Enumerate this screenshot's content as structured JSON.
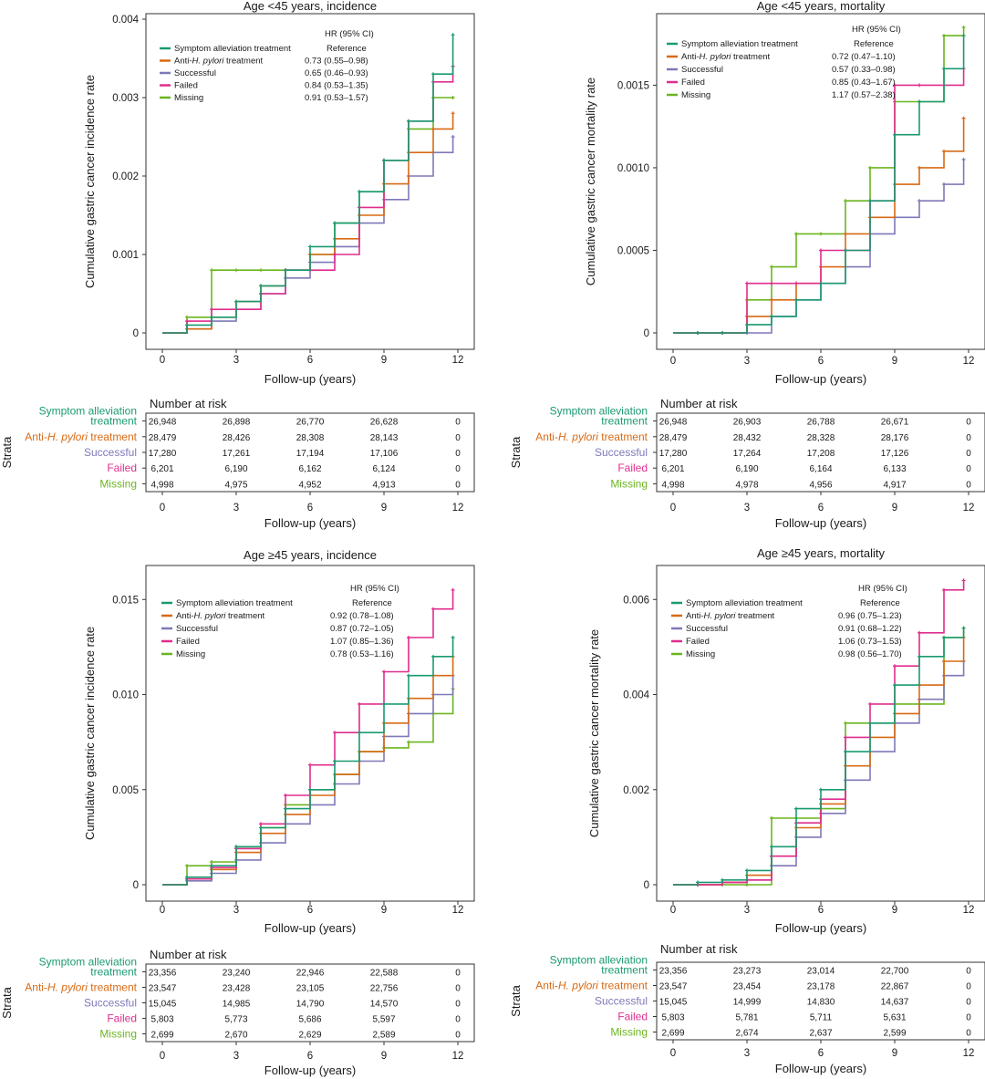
{
  "colors": {
    "Symptom alleviation treatment": "#1a9a72",
    "Anti-H. pylori treatment": "#d86a14",
    "Successful": "#7e79b8",
    "Failed": "#e02d8e",
    "Missing": "#6bb51f",
    "text": "#1a1a1a"
  },
  "chart_data": [
    {
      "type": "line",
      "subtype": "kaplan-meier-cumulative",
      "title": "Age <45 years, incidence",
      "xlabel": "Follow-up (years)",
      "ylabel": "Cumulative gastric cancer incidence rate",
      "xlim": [
        0,
        12
      ],
      "ylim": [
        0,
        0.004
      ],
      "xticks": [
        "0",
        "3",
        "6",
        "9",
        "12"
      ],
      "yticks": [
        "0",
        "0.001",
        "0.002",
        "0.003",
        "0.004"
      ],
      "yticks_values": [
        0,
        0.001,
        0.002,
        0.003,
        0.004
      ],
      "legend": {
        "hr_header": "HR (95% CI)",
        "location": "top-left"
      },
      "series": [
        {
          "name": "Symptom alleviation treatment",
          "hr": "Reference",
          "x": [
            0,
            1,
            2,
            3,
            4,
            5,
            6,
            7,
            8,
            9,
            10,
            11,
            11.8
          ],
          "y": [
            0,
            0.0001,
            0.0002,
            0.0004,
            0.0006,
            0.0008,
            0.0011,
            0.0014,
            0.0018,
            0.0022,
            0.0027,
            0.0033,
            0.0038
          ]
        },
        {
          "name": "Anti-H. pylori treatment",
          "hr": "0.73 (0.55–0.98)",
          "x": [
            0,
            1,
            2,
            3,
            4,
            5,
            6,
            7,
            8,
            9,
            10,
            11,
            11.8
          ],
          "y": [
            0,
            5e-05,
            0.0002,
            0.0004,
            0.0006,
            0.0008,
            0.001,
            0.0012,
            0.0015,
            0.0019,
            0.0023,
            0.0026,
            0.0028
          ]
        },
        {
          "name": "Successful",
          "hr": "0.65 (0.46–0.93)",
          "x": [
            0,
            1,
            2,
            3,
            4,
            5,
            6,
            7,
            8,
            9,
            10,
            11,
            11.8
          ],
          "y": [
            0,
            5e-05,
            0.00015,
            0.0003,
            0.0005,
            0.0007,
            0.0009,
            0.0011,
            0.0014,
            0.0017,
            0.002,
            0.0023,
            0.0025
          ]
        },
        {
          "name": "Failed",
          "hr": "0.84 (0.53–1.35)",
          "x": [
            0,
            1,
            2,
            3,
            4,
            5,
            6,
            7,
            8,
            9,
            10,
            11,
            11.8
          ],
          "y": [
            0,
            0.00015,
            0.0003,
            0.0003,
            0.0005,
            0.0008,
            0.0008,
            0.001,
            0.0016,
            0.0022,
            0.0027,
            0.0032,
            0.0034
          ]
        },
        {
          "name": "Missing",
          "hr": "0.91 (0.53–1.57)",
          "x": [
            0,
            1,
            2,
            3,
            4,
            5,
            6,
            7,
            8,
            9,
            10,
            11,
            11.8
          ],
          "y": [
            0,
            0.0002,
            0.0008,
            0.0008,
            0.0008,
            0.0008,
            0.001,
            0.0014,
            0.0018,
            0.0022,
            0.0026,
            0.003,
            0.003
          ]
        }
      ],
      "risk_table": {
        "title": "Number at risk",
        "ylabel": "Strata",
        "xlabel": "Follow-up (years)",
        "labels": [
          "Symptom alleviation treatment",
          "Anti-H. pylori treatment",
          "Successful",
          "Failed",
          "Missing"
        ],
        "rows": [
          [
            "26,948",
            "26,898",
            "26,770",
            "26,628",
            "0"
          ],
          [
            "28,479",
            "28,426",
            "28,308",
            "28,143",
            "0"
          ],
          [
            "17,280",
            "17,261",
            "17,194",
            "17,106",
            "0"
          ],
          [
            "6,201",
            "6,190",
            "6,162",
            "6,124",
            "0"
          ],
          [
            "4,998",
            "4,975",
            "4,952",
            "4,913",
            "0"
          ]
        ]
      }
    },
    {
      "type": "line",
      "subtype": "kaplan-meier-cumulative",
      "title": "Age <45 years, mortality",
      "xlabel": "Follow-up (years)",
      "ylabel": "Cumulative gastric cancer mortality rate",
      "xlim": [
        0,
        12
      ],
      "ylim": [
        0,
        0.0019
      ],
      "xticks": [
        "0",
        "3",
        "6",
        "9",
        "12"
      ],
      "yticks": [
        "0",
        "0.0005",
        "0.0010",
        "0.0015"
      ],
      "yticks_values": [
        0,
        0.0005,
        0.001,
        0.0015
      ],
      "legend": {
        "hr_header": "HR (95% CI)",
        "location": "top-left"
      },
      "series": [
        {
          "name": "Symptom alleviation treatment",
          "hr": "Reference",
          "x": [
            0,
            1,
            2,
            3,
            4,
            5,
            6,
            7,
            8,
            9,
            10,
            11,
            11.8
          ],
          "y": [
            0,
            0,
            0,
            5e-05,
            0.0001,
            0.0002,
            0.0003,
            0.0005,
            0.0008,
            0.0012,
            0.0014,
            0.0016,
            0.0018
          ]
        },
        {
          "name": "Anti-H. pylori treatment",
          "hr": "0.72 (0.47–1.10)",
          "x": [
            0,
            1,
            2,
            3,
            4,
            5,
            6,
            7,
            8,
            9,
            10,
            11,
            11.8
          ],
          "y": [
            0,
            0,
            0,
            0.0001,
            0.0002,
            0.0003,
            0.0004,
            0.0006,
            0.0007,
            0.0009,
            0.001,
            0.0011,
            0.0013
          ]
        },
        {
          "name": "Successful",
          "hr": "0.57 (0.33–0.98)",
          "x": [
            0,
            1,
            2,
            3,
            4,
            5,
            6,
            7,
            8,
            9,
            10,
            11,
            11.8
          ],
          "y": [
            0,
            0,
            0,
            0,
            0.0001,
            0.0002,
            0.0003,
            0.0004,
            0.0006,
            0.0007,
            0.0008,
            0.0009,
            0.00105
          ]
        },
        {
          "name": "Failed",
          "hr": "0.85 (0.43–1.67)",
          "x": [
            0,
            1,
            2,
            3,
            4,
            5,
            6,
            7,
            8,
            9,
            10,
            11,
            11.8
          ],
          "y": [
            0,
            0,
            0,
            0.0003,
            0.0003,
            0.0003,
            0.0005,
            0.0005,
            0.0008,
            0.0015,
            0.0015,
            0.0015,
            0.0016
          ]
        },
        {
          "name": "Missing",
          "hr": "1.17 (0.57–2.38)",
          "x": [
            0,
            1,
            2,
            3,
            4,
            5,
            6,
            7,
            8,
            9,
            10,
            11,
            11.8
          ],
          "y": [
            0,
            0,
            0,
            0.0002,
            0.0004,
            0.0006,
            0.0006,
            0.0008,
            0.001,
            0.0014,
            0.0014,
            0.0018,
            0.00185
          ]
        }
      ],
      "risk_table": {
        "title": "Number at risk",
        "ylabel": "Strata",
        "xlabel": "Follow-up (years)",
        "labels": [
          "Symptom alleviation treatment",
          "Anti-H. pylori treatment",
          "Successful",
          "Failed",
          "Missing"
        ],
        "rows": [
          [
            "26,948",
            "26,903",
            "26,788",
            "26,671",
            "0"
          ],
          [
            "28,479",
            "28,432",
            "28,328",
            "28,176",
            "0"
          ],
          [
            "17,280",
            "17,264",
            "17,208",
            "17,126",
            "0"
          ],
          [
            "6,201",
            "6,190",
            "6,164",
            "6,133",
            "0"
          ],
          [
            "4,998",
            "4,978",
            "4,956",
            "4,917",
            "0"
          ]
        ]
      }
    },
    {
      "type": "line",
      "subtype": "kaplan-meier-cumulative",
      "title": "Age ≥45 years, incidence",
      "xlabel": "Follow-up (years)",
      "ylabel": "Cumulative gastric cancer incidence rate",
      "xlim": [
        0,
        12
      ],
      "ylim": [
        0,
        0.0165
      ],
      "xticks": [
        "0",
        "3",
        "6",
        "9",
        "12"
      ],
      "yticks": [
        "0",
        "0.005",
        "0.010",
        "0.015"
      ],
      "yticks_values": [
        0,
        0.005,
        0.01,
        0.015
      ],
      "legend": {
        "hr_header": "HR (95% CI)",
        "location": "top-left"
      },
      "series": [
        {
          "name": "Symptom alleviation treatment",
          "hr": "Reference",
          "x": [
            0,
            1,
            2,
            3,
            4,
            5,
            6,
            7,
            8,
            9,
            10,
            11,
            11.8
          ],
          "y": [
            0,
            0.0004,
            0.001,
            0.002,
            0.003,
            0.004,
            0.005,
            0.0065,
            0.008,
            0.0095,
            0.011,
            0.012,
            0.013
          ]
        },
        {
          "name": "Anti-H. pylori treatment",
          "hr": "0.92 (0.78–1.08)",
          "x": [
            0,
            1,
            2,
            3,
            4,
            5,
            6,
            7,
            8,
            9,
            10,
            11,
            11.8
          ],
          "y": [
            0,
            0.0003,
            0.0008,
            0.0017,
            0.0027,
            0.0037,
            0.0047,
            0.0058,
            0.007,
            0.0085,
            0.0098,
            0.011,
            0.012
          ]
        },
        {
          "name": "Successful",
          "hr": "0.87 (0.72–1.05)",
          "x": [
            0,
            1,
            2,
            3,
            4,
            5,
            6,
            7,
            8,
            9,
            10,
            11,
            11.8
          ],
          "y": [
            0,
            0.0002,
            0.0006,
            0.0013,
            0.0022,
            0.0032,
            0.0042,
            0.0053,
            0.0065,
            0.0078,
            0.009,
            0.01,
            0.011
          ]
        },
        {
          "name": "Failed",
          "hr": "1.07 (0.85–1.36)",
          "x": [
            0,
            1,
            2,
            3,
            4,
            5,
            6,
            7,
            8,
            9,
            10,
            11,
            11.8
          ],
          "y": [
            0,
            0.0003,
            0.0009,
            0.0019,
            0.0032,
            0.0047,
            0.0063,
            0.008,
            0.0095,
            0.0112,
            0.013,
            0.0145,
            0.0155
          ]
        },
        {
          "name": "Missing",
          "hr": "0.78 (0.53–1.16)",
          "x": [
            0,
            1,
            2,
            3,
            4,
            5,
            6,
            7,
            8,
            9,
            10,
            11,
            11.8
          ],
          "y": [
            0,
            0.001,
            0.0012,
            0.002,
            0.003,
            0.0042,
            0.005,
            0.0058,
            0.007,
            0.0072,
            0.0075,
            0.009,
            0.0103
          ]
        }
      ],
      "risk_table": {
        "title": "Number at risk",
        "ylabel": "Strata",
        "xlabel": "Follow-up (years)",
        "labels": [
          "Symptom alleviation treatment",
          "Anti-H. pylori treatment",
          "Successful",
          "Failed",
          "Missing"
        ],
        "rows": [
          [
            "23,356",
            "23,240",
            "22,946",
            "22,588",
            "0"
          ],
          [
            "23,547",
            "23,428",
            "23,105",
            "22,756",
            "0"
          ],
          [
            "15,045",
            "14,985",
            "14,790",
            "14,570",
            "0"
          ],
          [
            "5,803",
            "5,773",
            "5,686",
            "5,597",
            "0"
          ],
          [
            "2,699",
            "2,670",
            "2,629",
            "2,589",
            "0"
          ]
        ]
      }
    },
    {
      "type": "line",
      "subtype": "kaplan-meier-cumulative",
      "title": "Age ≥45 years, mortality",
      "xlabel": "Follow-up (years)",
      "ylabel": "Cumulative gastric cancer mortality rate",
      "xlim": [
        0,
        12
      ],
      "ylim": [
        0,
        0.0066
      ],
      "xticks": [
        "0",
        "3",
        "6",
        "9",
        "12"
      ],
      "yticks": [
        "0",
        "0.002",
        "0.004",
        "0.006"
      ],
      "yticks_values": [
        0,
        0.002,
        0.004,
        0.006
      ],
      "legend": {
        "hr_header": "HR (95% CI)",
        "location": "top-left"
      },
      "series": [
        {
          "name": "Symptom alleviation treatment",
          "hr": "Reference",
          "x": [
            0,
            1,
            2,
            3,
            4,
            5,
            6,
            7,
            8,
            9,
            10,
            11,
            11.8
          ],
          "y": [
            0,
            5e-05,
            0.0001,
            0.0003,
            0.0008,
            0.0016,
            0.002,
            0.0028,
            0.0034,
            0.0042,
            0.0048,
            0.0052,
            0.0054
          ]
        },
        {
          "name": "Anti-H. pylori treatment",
          "hr": "0.96 (0.75–1.23)",
          "x": [
            0,
            1,
            2,
            3,
            4,
            5,
            6,
            7,
            8,
            9,
            10,
            11,
            11.8
          ],
          "y": [
            0,
            0,
            5e-05,
            0.0002,
            0.0006,
            0.0012,
            0.0017,
            0.0025,
            0.0031,
            0.0036,
            0.0042,
            0.0047,
            0.0052
          ]
        },
        {
          "name": "Successful",
          "hr": "0.91 (0.68–1.22)",
          "x": [
            0,
            1,
            2,
            3,
            4,
            5,
            6,
            7,
            8,
            9,
            10,
            11,
            11.8
          ],
          "y": [
            0,
            0,
            5e-05,
            0.0001,
            0.0004,
            0.001,
            0.0015,
            0.0022,
            0.0028,
            0.0034,
            0.0039,
            0.0044,
            0.0047
          ]
        },
        {
          "name": "Failed",
          "hr": "1.06 (0.73–1.53)",
          "x": [
            0,
            1,
            2,
            3,
            4,
            5,
            6,
            7,
            8,
            9,
            10,
            11,
            11.8
          ],
          "y": [
            0,
            0,
            5e-05,
            0.0001,
            0.0006,
            0.0013,
            0.0018,
            0.0031,
            0.0038,
            0.0046,
            0.0053,
            0.0062,
            0.0064
          ]
        },
        {
          "name": "Missing",
          "hr": "0.98 (0.56–1.70)",
          "x": [
            0,
            1,
            2,
            3,
            4,
            5,
            6,
            7,
            8,
            9,
            10,
            11,
            11.8
          ],
          "y": [
            0,
            0,
            0,
            0,
            0.0014,
            0.0014,
            0.0016,
            0.0034,
            0.0034,
            0.0038,
            0.0038,
            0.0052,
            0.0054
          ]
        }
      ],
      "risk_table": {
        "title": "Number at risk",
        "ylabel": "Strata",
        "xlabel": "Follow-up (years)",
        "labels": [
          "Symptom alleviation treatment",
          "Anti-H. pylori treatment",
          "Successful",
          "Failed",
          "Missing"
        ],
        "rows": [
          [
            "23,356",
            "23,273",
            "23,014",
            "22,700",
            "0"
          ],
          [
            "23,547",
            "23,454",
            "23,178",
            "22,867",
            "0"
          ],
          [
            "15,045",
            "14,999",
            "14,830",
            "14,637",
            "0"
          ],
          [
            "5,803",
            "5,781",
            "5,711",
            "5,631",
            "0"
          ],
          [
            "2,699",
            "2,674",
            "2,637",
            "2,599",
            "0"
          ]
        ]
      }
    }
  ]
}
